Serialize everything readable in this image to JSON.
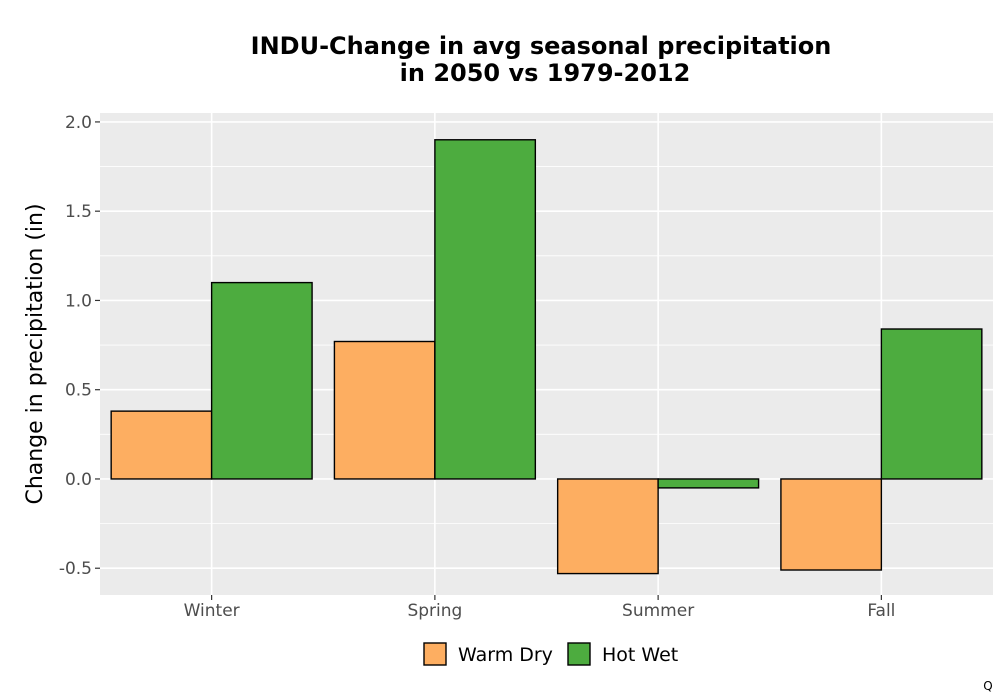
{
  "chart_data": {
    "type": "bar",
    "title_lines": [
      "INDU-Change in avg seasonal precipitation",
      "in 2050 vs 1979-2012"
    ],
    "xlabel": "",
    "ylabel": "Change in precipitation (in)",
    "categories": [
      "Winter",
      "Spring",
      "Summer",
      "Fall"
    ],
    "series": [
      {
        "name": "Warm Dry",
        "color": "#fdae61",
        "values": [
          0.38,
          0.77,
          -0.53,
          -0.51
        ]
      },
      {
        "name": "Hot Wet",
        "color": "#4dac3f",
        "values": [
          1.1,
          1.9,
          -0.05,
          0.84
        ]
      }
    ],
    "ylim": [
      -0.65,
      2.05
    ],
    "yticks": [
      -0.5,
      0.0,
      0.5,
      1.0,
      1.5,
      2.0
    ],
    "ytick_labels": [
      "-0.5",
      "0.0",
      "0.5",
      "1.0",
      "1.5",
      "2.0"
    ],
    "grid": true,
    "legend_position": "bottom",
    "panel_color": "#ebebeb",
    "footnote": "Q"
  }
}
